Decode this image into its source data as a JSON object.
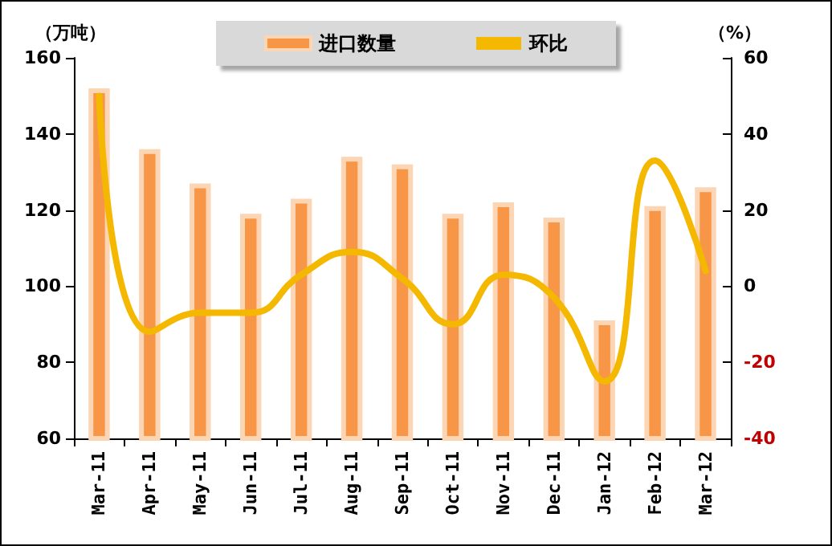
{
  "chart_data": {
    "type": "bar",
    "ylabel": "（万吨）",
    "y2label": "（%）",
    "categories": [
      "Mar-11",
      "Apr-11",
      "May-11",
      "Jun-11",
      "Jul-11",
      "Aug-11",
      "Sep-11",
      "Oct-11",
      "Nov-11",
      "Dec-11",
      "Jan-12",
      "Feb-12",
      "Mar-12"
    ],
    "series": [
      {
        "name": "进口数量",
        "color": "#f79646",
        "values": [
          152,
          136,
          127,
          119,
          123,
          134,
          132,
          119,
          122,
          118,
          91,
          121,
          126
        ]
      },
      {
        "name": "环比",
        "type": "line",
        "axis": "y2",
        "color": "#f5b800",
        "values": [
          50,
          -12,
          -7,
          -7,
          3,
          9,
          2,
          -10,
          3,
          -3,
          -25,
          33,
          4
        ]
      }
    ],
    "ylim": [
      60,
      160
    ],
    "yticks": [
      60,
      80,
      100,
      120,
      140,
      160
    ],
    "y2lim": [
      -40,
      60
    ],
    "y2ticks": [
      -40,
      -20,
      0,
      20,
      40,
      60
    ],
    "grid": false,
    "legend": "top",
    "marker": "none"
  }
}
